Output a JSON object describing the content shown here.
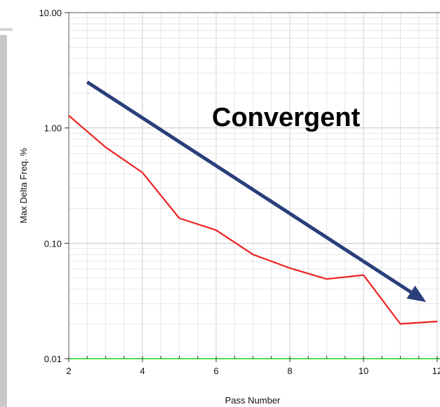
{
  "chart_data": {
    "type": "line",
    "title": "",
    "xlabel": "Pass Number",
    "ylabel": "Max Delta Freq. %",
    "xlim": [
      2,
      12
    ],
    "ylim": [
      0.01,
      10.0
    ],
    "y_scale": "log",
    "grid": true,
    "x_ticks": [
      2,
      4,
      6,
      8,
      10,
      12
    ],
    "x_tick_labels": [
      "2",
      "4",
      "6",
      "8",
      "10",
      "12"
    ],
    "y_ticks": [
      0.01,
      0.1,
      1.0,
      10.0
    ],
    "y_tick_labels": [
      "0.01",
      "0.10",
      "1.00",
      "10.00"
    ],
    "series": [
      {
        "color": "#ee2222",
        "x": [
          2,
          3,
          4,
          5,
          6,
          7,
          8,
          9,
          10,
          11,
          12
        ],
        "y": [
          1.28,
          0.68,
          0.41,
          0.165,
          0.13,
          0.08,
          0.061,
          0.049,
          0.053,
          0.02,
          0.021
        ]
      }
    ],
    "reference_line": {
      "y": 0.01,
      "color": "#55dd55"
    },
    "annotation": {
      "text": "Convergent",
      "arrow_color": "#2a3f7a",
      "arrow_from": {
        "x": 2.5,
        "y": 2.5
      },
      "arrow_to": {
        "x": 11.7,
        "y": 0.031
      }
    }
  }
}
